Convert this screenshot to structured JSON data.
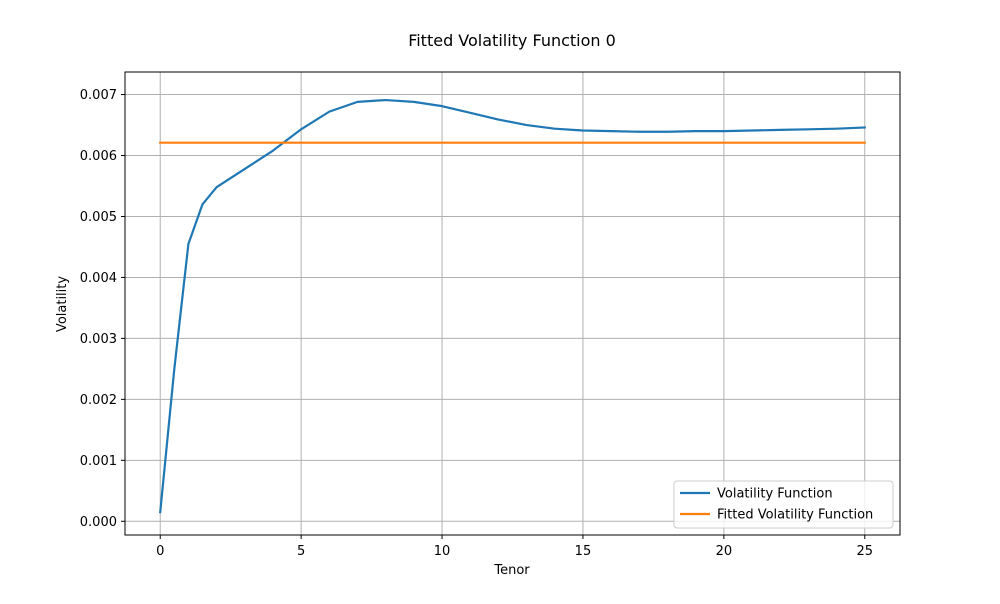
{
  "colors": {
    "series_1": "#1f77b4",
    "series_2": "#ff7f0e",
    "grid": "#b0b0b0",
    "axes": "#000000",
    "legend_border": "#cccccc"
  },
  "chart_data": {
    "type": "line",
    "title": "Fitted Volatility Function 0",
    "xlabel": "Tenor",
    "ylabel": "Volatility",
    "xlim": [
      -1.25,
      26.25
    ],
    "ylim": [
      -0.000225,
      0.00737
    ],
    "xticks": [
      0,
      5,
      10,
      15,
      20,
      25
    ],
    "xtick_labels": [
      "0",
      "5",
      "10",
      "15",
      "20",
      "25"
    ],
    "yticks": [
      0.0,
      0.001,
      0.002,
      0.003,
      0.004,
      0.005,
      0.006,
      0.007
    ],
    "ytick_labels": [
      "0.000",
      "0.001",
      "0.002",
      "0.003",
      "0.004",
      "0.005",
      "0.006",
      "0.007"
    ],
    "grid": true,
    "legend_position": "lower right",
    "series": [
      {
        "name": "Volatility Function",
        "color": "#1f77b4",
        "x": [
          0,
          0.5,
          1,
          1.5,
          2,
          3,
          4,
          5,
          6,
          7,
          8,
          9,
          10,
          11,
          12,
          13,
          14,
          15,
          16,
          17,
          18,
          19,
          20,
          21,
          22,
          23,
          24,
          25
        ],
        "y": [
          0.00015,
          0.0025,
          0.00455,
          0.0052,
          0.00548,
          0.00578,
          0.00608,
          0.00643,
          0.00672,
          0.00688,
          0.00691,
          0.00688,
          0.00681,
          0.0067,
          0.00659,
          0.0065,
          0.00644,
          0.00641,
          0.0064,
          0.00639,
          0.00639,
          0.0064,
          0.0064,
          0.00641,
          0.00642,
          0.00643,
          0.00644,
          0.00646
        ]
      },
      {
        "name": "Fitted Volatility Function",
        "color": "#ff7f0e",
        "x": [
          0,
          25
        ],
        "y": [
          0.00621,
          0.00621
        ]
      }
    ]
  }
}
